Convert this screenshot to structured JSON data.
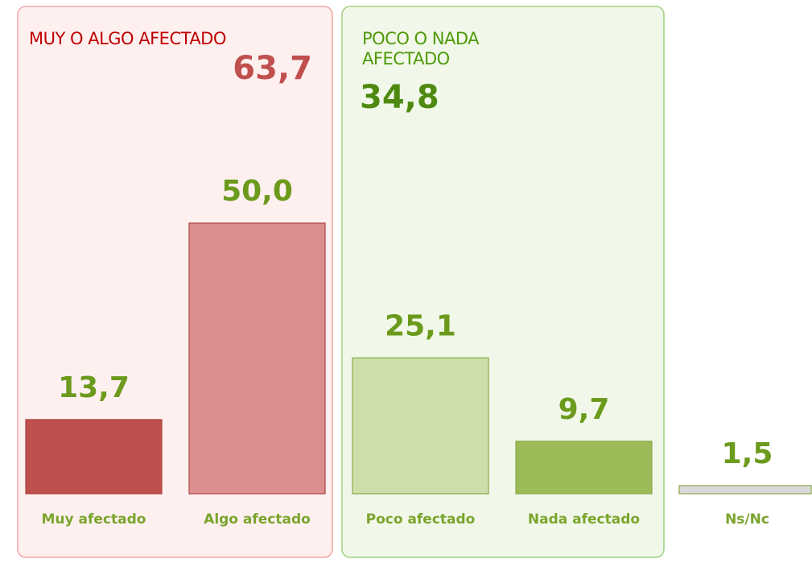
{
  "chart_data": {
    "type": "bar",
    "categories": [
      "Muy afectado",
      "Algo afectado",
      "Poco afectado",
      "Nada afectado",
      "Ns/Nc"
    ],
    "values": [
      13.7,
      50.0,
      25.1,
      9.7,
      1.5
    ],
    "value_labels": [
      "13,7",
      "50,0",
      "25,1",
      "9,7",
      "1,5"
    ],
    "colors": [
      "#c0504d",
      "#dd8f8f",
      "#cddea8",
      "#9bbb59",
      "#d9d9d9"
    ],
    "groups": [
      {
        "name": "MUY O ALGO  AFECTADO",
        "total": {
          "value": 63.7,
          "label": "63,7"
        }
      },
      {
        "name": "POCO O NADA AFECTADO",
        "total": {
          "value": 34.8,
          "label": "34,8"
        }
      }
    ]
  }
}
